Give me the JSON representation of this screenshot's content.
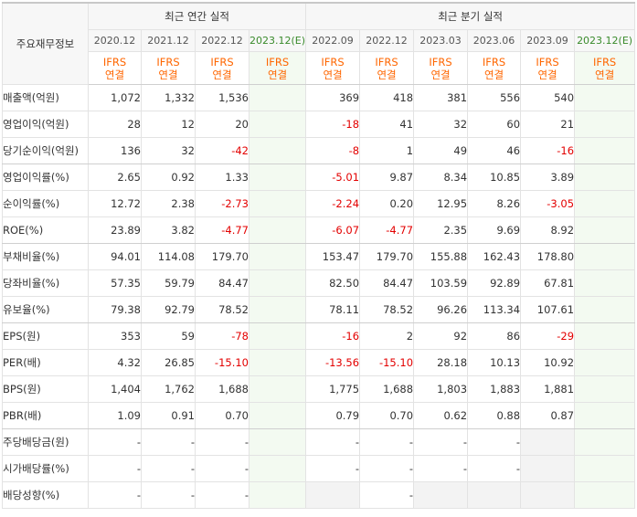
{
  "header": {
    "row_head": "주요재무정보",
    "annual_group": "최근 연간 실적",
    "quarter_group": "최근 분기 실적",
    "periods": [
      "2020.12",
      "2021.12",
      "2022.12",
      "2023.12(E)",
      "2022.09",
      "2022.12",
      "2023.03",
      "2023.06",
      "2023.09",
      "2023.12(E)"
    ],
    "ifrs_top": "IFRS",
    "ifrs_bottom": "연결"
  },
  "rows": [
    {
      "label": "매출액(억원)",
      "values": [
        "1,072",
        "1,332",
        "1,536",
        "",
        "369",
        "418",
        "381",
        "556",
        "540",
        ""
      ]
    },
    {
      "label": "영업이익(억원)",
      "values": [
        "28",
        "12",
        "20",
        "",
        "-18",
        "41",
        "32",
        "60",
        "21",
        ""
      ]
    },
    {
      "label": "당기순이익(억원)",
      "values": [
        "136",
        "32",
        "-42",
        "",
        "-8",
        "1",
        "49",
        "46",
        "-16",
        ""
      ]
    },
    {
      "label": "영업이익률(%)",
      "values": [
        "2.65",
        "0.92",
        "1.33",
        "",
        "-5.01",
        "9.87",
        "8.34",
        "10.85",
        "3.89",
        ""
      ]
    },
    {
      "label": "순이익률(%)",
      "values": [
        "12.72",
        "2.38",
        "-2.73",
        "",
        "-2.24",
        "0.20",
        "12.95",
        "8.26",
        "-3.05",
        ""
      ]
    },
    {
      "label": "ROE(%)",
      "values": [
        "23.89",
        "3.82",
        "-4.77",
        "",
        "-6.07",
        "-4.77",
        "2.35",
        "9.69",
        "8.92",
        ""
      ]
    },
    {
      "label": "부채비율(%)",
      "values": [
        "94.01",
        "114.08",
        "179.70",
        "",
        "153.47",
        "179.70",
        "155.88",
        "162.43",
        "178.80",
        ""
      ]
    },
    {
      "label": "당좌비율(%)",
      "values": [
        "57.35",
        "59.79",
        "84.47",
        "",
        "82.50",
        "84.47",
        "103.59",
        "92.89",
        "67.81",
        ""
      ]
    },
    {
      "label": "유보율(%)",
      "values": [
        "79.38",
        "92.79",
        "78.52",
        "",
        "78.11",
        "78.52",
        "96.26",
        "113.34",
        "107.61",
        ""
      ]
    },
    {
      "label": "EPS(원)",
      "values": [
        "353",
        "59",
        "-78",
        "",
        "-16",
        "2",
        "92",
        "86",
        "-29",
        ""
      ]
    },
    {
      "label": "PER(배)",
      "values": [
        "4.32",
        "26.85",
        "-15.10",
        "",
        "-13.56",
        "-15.10",
        "28.18",
        "10.13",
        "10.92",
        ""
      ]
    },
    {
      "label": "BPS(원)",
      "values": [
        "1,404",
        "1,762",
        "1,688",
        "",
        "1,775",
        "1,688",
        "1,803",
        "1,883",
        "1,881",
        ""
      ]
    },
    {
      "label": "PBR(배)",
      "values": [
        "1.09",
        "0.91",
        "0.70",
        "",
        "0.79",
        "0.70",
        "0.62",
        "0.88",
        "0.87",
        ""
      ]
    },
    {
      "label": "주당배당금(원)",
      "values": [
        "-",
        "-",
        "-",
        "",
        "-",
        "-",
        "-",
        "-",
        "",
        ""
      ]
    },
    {
      "label": "시가배당률(%)",
      "values": [
        "-",
        "-",
        "-",
        "",
        "-",
        "-",
        "-",
        "-",
        "",
        ""
      ]
    },
    {
      "label": "배당성향(%)",
      "values": [
        "-",
        "-",
        "-",
        "",
        "",
        "-",
        "",
        "",
        "",
        ""
      ]
    }
  ],
  "colors": {
    "negative": "#e30000",
    "ifrs": "#ff6600",
    "estimate_head": "#3a8b2c",
    "estimate_bg": "#f3faf1",
    "header_bg": "#f7f7f7"
  }
}
